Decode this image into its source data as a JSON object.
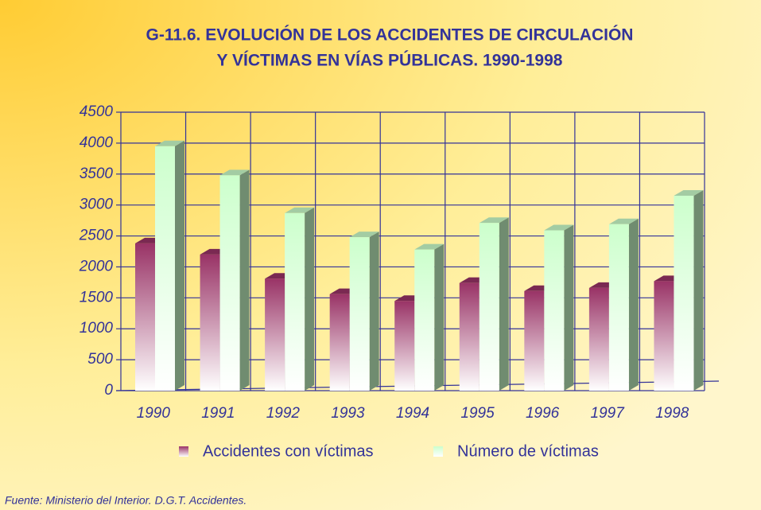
{
  "chart_data": {
    "type": "bar",
    "title": [
      "G-11.6.  EVOLUCIÓN DE LOS ACCIDENTES DE CIRCULACIÓN",
      "Y VÍCTIMAS EN VÍAS PÚBLICAS. 1990-1998"
    ],
    "categories": [
      "1990",
      "1991",
      "1992",
      "1993",
      "1994",
      "1995",
      "1996",
      "1997",
      "1998"
    ],
    "series": [
      {
        "name": "Accidentes con víctimas",
        "color": "#993366",
        "values": [
          2380,
          2200,
          1810,
          1560,
          1450,
          1740,
          1610,
          1660,
          1770
        ]
      },
      {
        "name": "Número de víctimas",
        "color": "#ccffcc",
        "values": [
          3950,
          3480,
          2870,
          2480,
          2280,
          2710,
          2590,
          2690,
          3150
        ]
      }
    ],
    "ylim": [
      0,
      4500
    ],
    "yticks": [
      0,
      500,
      1000,
      1500,
      2000,
      2500,
      3000,
      3500,
      4000,
      4500
    ],
    "grid": true,
    "legend": "bottom",
    "source": "Fuente: Ministerio del Interior. D.G.T. Accidentes."
  }
}
